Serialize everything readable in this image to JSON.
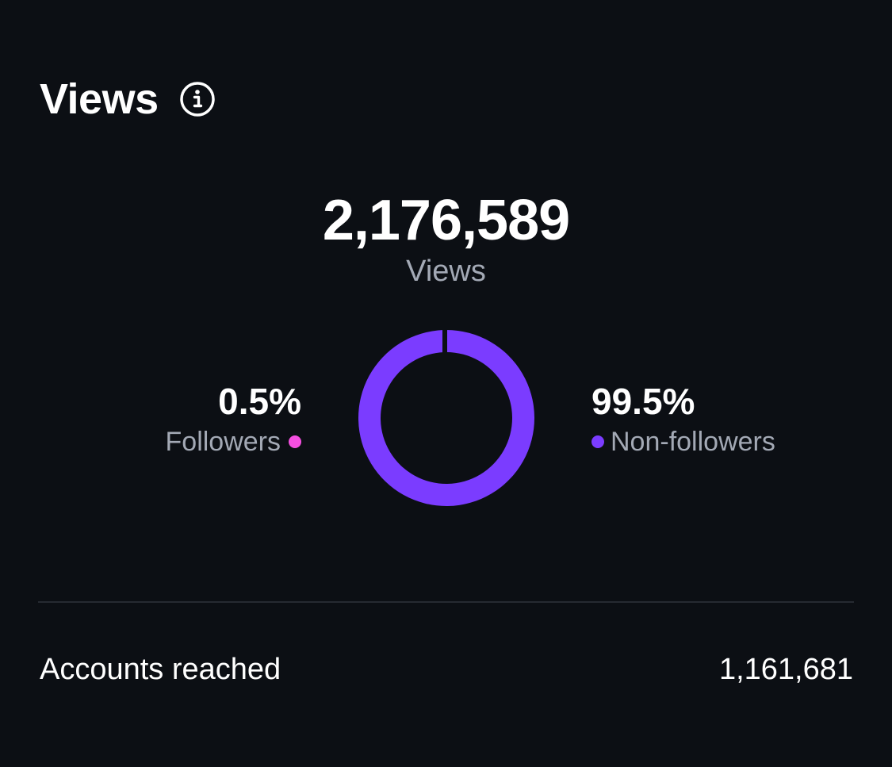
{
  "header": {
    "title": "Views",
    "info_icon": "info-icon"
  },
  "summary": {
    "total": "2,176,589",
    "label": "Views"
  },
  "breakdown": {
    "followers": {
      "percent": "0.5%",
      "label": "Followers",
      "value": 0.5,
      "color": "#f54fe0"
    },
    "non_followers": {
      "percent": "99.5%",
      "label": "Non-followers",
      "value": 99.5,
      "color": "#7b3cff"
    }
  },
  "metrics": {
    "accounts_reached": {
      "label": "Accounts reached",
      "value": "1,161,681"
    }
  },
  "chart_data": {
    "type": "pie",
    "categories": [
      "Followers",
      "Non-followers"
    ],
    "values": [
      0.5,
      99.5
    ],
    "colors": [
      "#f54fe0",
      "#7b3cff"
    ],
    "style": "donut"
  }
}
